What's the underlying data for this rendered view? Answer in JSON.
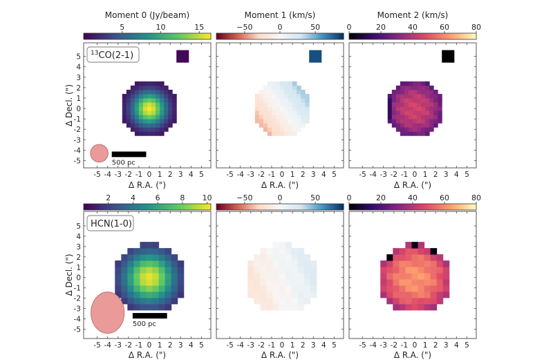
{
  "chart_data": {
    "type": "heatmap",
    "xlabel": "Δ R.A. (\")",
    "ylabel": "Δ Decl. (\")",
    "xticks": [
      -5,
      -4,
      -3,
      -2,
      -1,
      0,
      1,
      2,
      3,
      4,
      5
    ],
    "yticks": [
      -5,
      -4,
      -3,
      -2,
      -1,
      0,
      1,
      2,
      3,
      4,
      5
    ],
    "scale_bar_label": "500 pc",
    "colorbar_titles": [
      "Moment 0 (Jy/beam)",
      "Moment 1 (km/s)",
      "Moment 2 (km/s)"
    ],
    "rows": [
      {
        "line": {
          "sup": "13",
          "text": "CO(2-1)"
        },
        "xlim": [
          -6.3,
          5.9
        ],
        "ylim": [
          -5.7,
          6.3
        ],
        "pixel_arcsec": 0.4,
        "source_radius_arcsec": 2.75,
        "beam": {
          "center": [
            -4.8,
            -4.3
          ],
          "major_arcsec": 1.7,
          "minor_arcsec": 1.7
        },
        "scale_bar": {
          "x": [
            -3.6,
            -0.3
          ],
          "y": -4.4
        },
        "isolated_pixel": [
          3.2,
          5.0
        ],
        "panels": [
          {
            "moment": 0,
            "cmap": "viridis",
            "range": [
              0,
              16.5
            ],
            "ticks": [
              5,
              10,
              15
            ],
            "peak": 16,
            "sigma": 1.1
          },
          {
            "moment": 1,
            "cmap": "RdBu",
            "range": [
              -90,
              90
            ],
            "ticks": [
              -50,
              0,
              50
            ],
            "gradient": [
              12,
              9
            ],
            "isolated_value": 80
          },
          {
            "moment": 2,
            "cmap": "magma",
            "range": [
              0,
              80
            ],
            "ticks": [
              0,
              20,
              40,
              60,
              80
            ],
            "center": 45,
            "edge": 22
          }
        ]
      },
      {
        "line": {
          "sup": "",
          "text": "HCN(1-0)"
        },
        "xlim": [
          -6.3,
          5.9
        ],
        "ylim": [
          -5.9,
          6.4
        ],
        "pixel_arcsec": 0.6,
        "source_radius_arcsec": 3.5,
        "beam": {
          "center": [
            -4.0,
            -3.4
          ],
          "major_arcsec": 4.0,
          "minor_arcsec": 3.2
        },
        "scale_bar": {
          "x": [
            -1.6,
            1.7
          ],
          "y": -3.7
        },
        "isolated_pixel": null,
        "panels": [
          {
            "moment": 0,
            "cmap": "viridis",
            "range": [
              0,
              10.3
            ],
            "ticks": [
              2,
              4,
              6,
              8,
              10
            ],
            "peak": 9.6,
            "sigma": 1.7
          },
          {
            "moment": 1,
            "cmap": "RdBu",
            "range": [
              -90,
              90
            ],
            "ticks": [
              -50,
              0,
              50
            ],
            "gradient": [
              6,
              2
            ]
          },
          {
            "moment": 2,
            "cmap": "magma",
            "range": [
              0,
              80
            ],
            "ticks": [
              0,
              20,
              40,
              60,
              80
            ],
            "center": 62,
            "edge": 38
          }
        ]
      }
    ]
  },
  "colors": {
    "beam_fill": "#eb9a9a",
    "viridis": [
      "#440154",
      "#3b528b",
      "#21918c",
      "#5ec962",
      "#fde725"
    ],
    "RdBu": [
      "#67001f",
      "#d6604d",
      "#fddbc7",
      "#f7f7f7",
      "#d1e5f0",
      "#4393c3",
      "#053061"
    ],
    "magma": [
      "#000004",
      "#3b0f70",
      "#8c2981",
      "#de4968",
      "#fe9f6d",
      "#fcfdbf"
    ]
  }
}
